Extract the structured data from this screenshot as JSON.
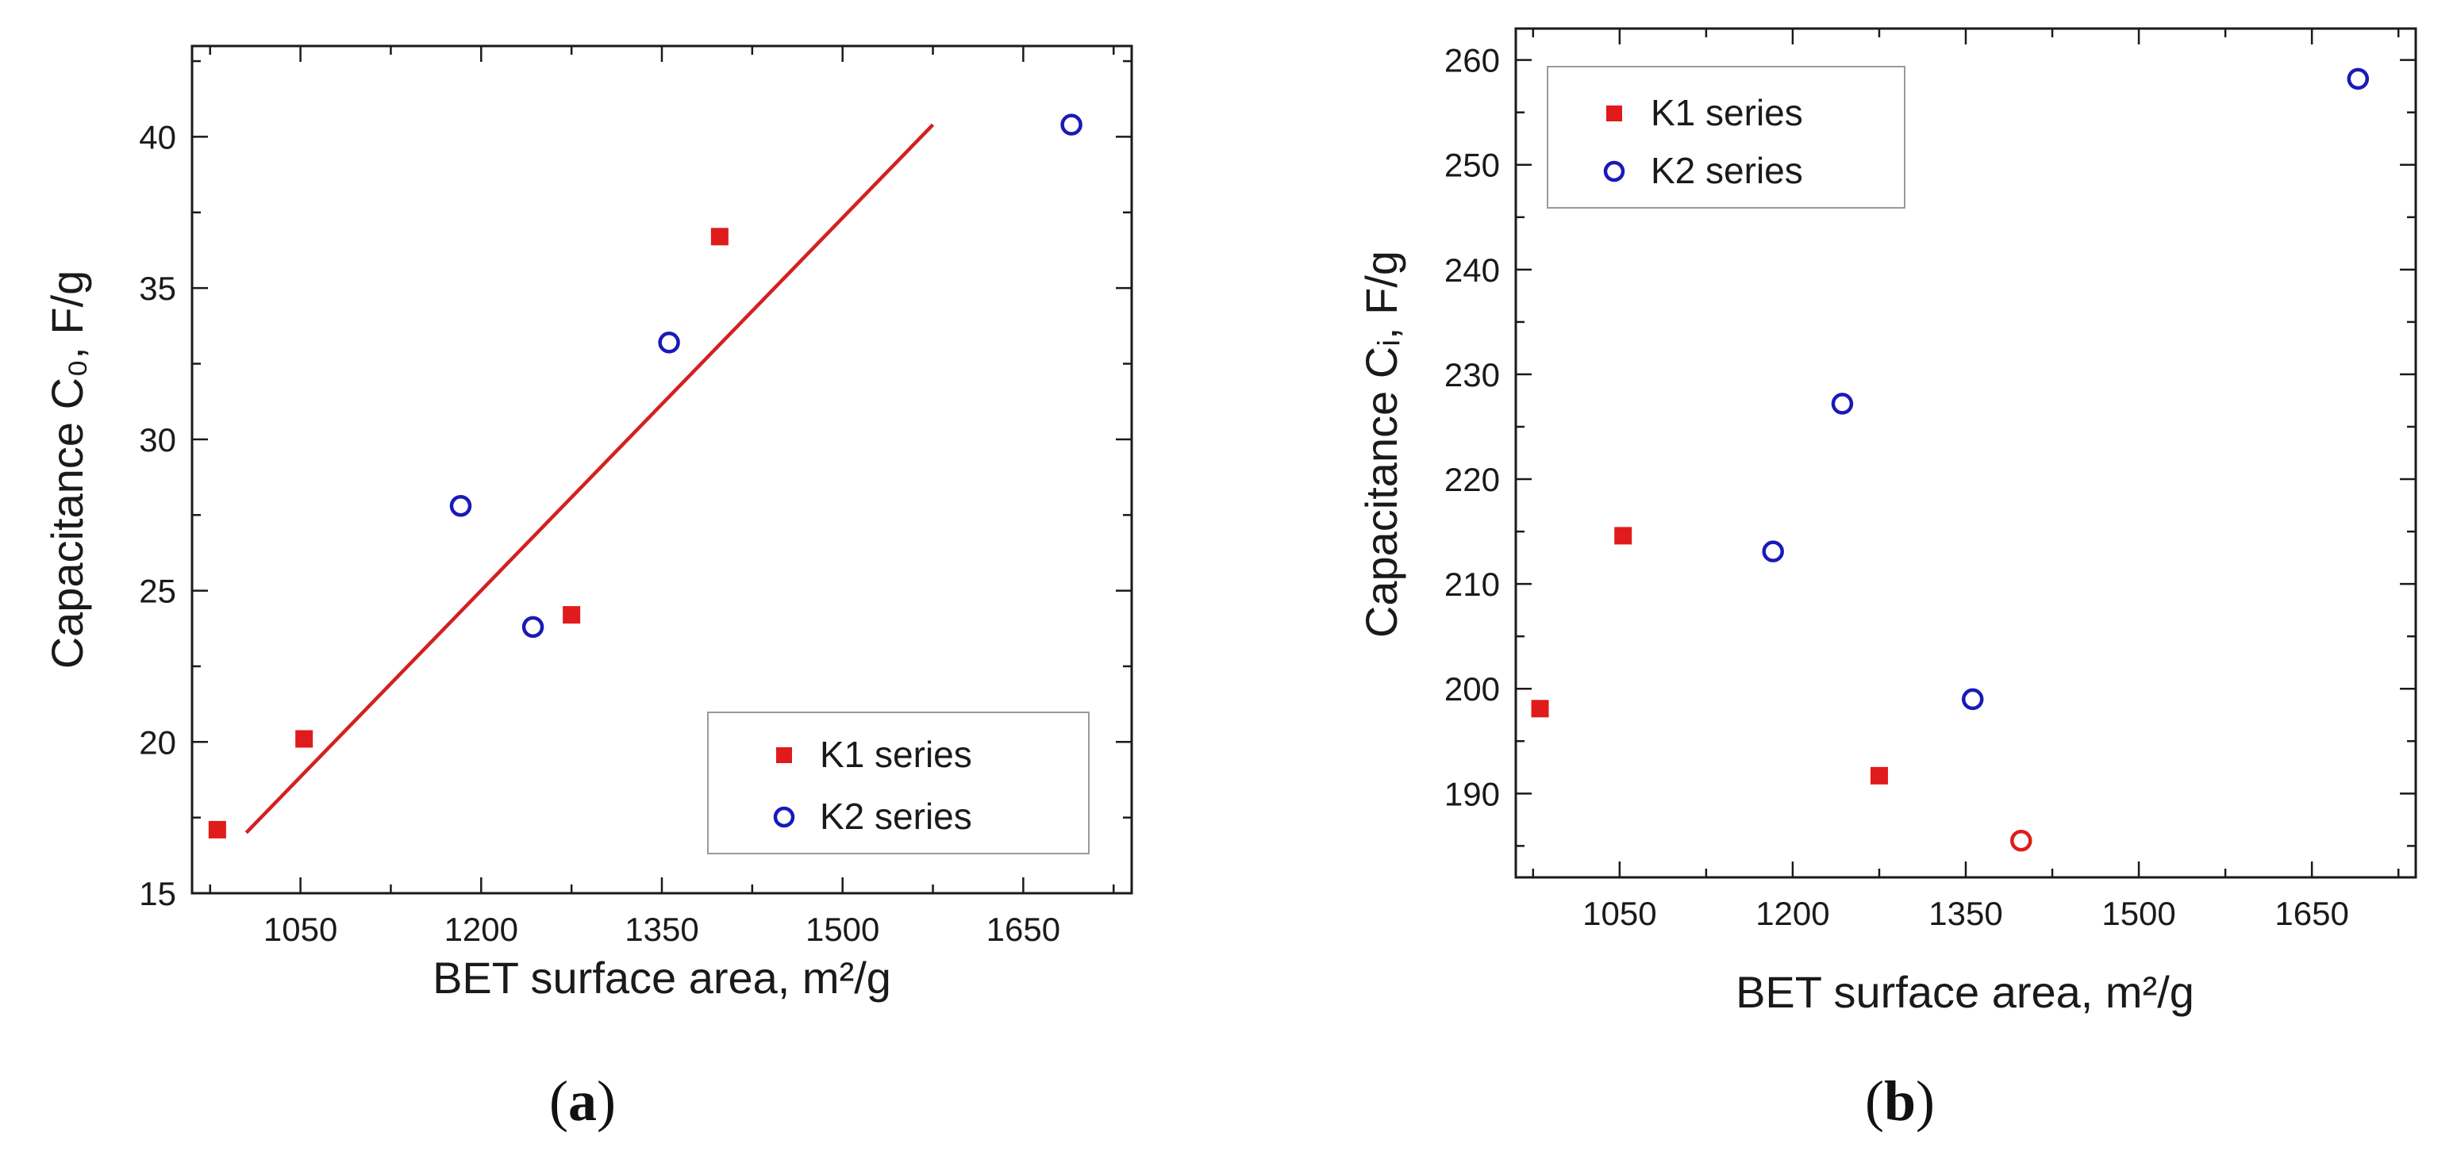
{
  "colors": {
    "k1": "#e01b1b",
    "k2": "#1a1ab8",
    "fit": "#d42020",
    "axis": "#1a1a1a",
    "outlier": "#e01b1b"
  },
  "chart_data": [
    {
      "type": "scatter",
      "panel": "a",
      "caption": {
        "open": "(",
        "letter": "a",
        "close": ")"
      },
      "xlabel": "BET surface area, m²/g",
      "ylabel": "Capacitance C₀, F/g",
      "xlim": [
        960,
        1740
      ],
      "ylim": [
        15,
        43
      ],
      "xticks": [
        1050,
        1200,
        1350,
        1500,
        1650
      ],
      "yticks": [
        15,
        20,
        25,
        30,
        35,
        40
      ],
      "legend_position": "bottom-right",
      "series": [
        {
          "name": "K1 series",
          "marker": "filled-square",
          "x": [
            981,
            1053,
            1275,
            1398
          ],
          "y": [
            17.1,
            20.1,
            24.2,
            36.7
          ]
        },
        {
          "name": "K2 series",
          "marker": "open-circle",
          "x": [
            1183,
            1243,
            1356,
            1690
          ],
          "y": [
            27.8,
            23.8,
            33.2,
            40.4
          ]
        }
      ],
      "fit_line": {
        "x": [
          1005,
          1575
        ],
        "y": [
          17.0,
          40.4
        ]
      }
    },
    {
      "type": "scatter",
      "panel": "b",
      "caption": {
        "open": "(",
        "letter": "b",
        "close": ")"
      },
      "xlabel": "BET surface area, m²/g",
      "ylabel": "Capacitance Cᵢ, F/g",
      "xlim": [
        960,
        1740
      ],
      "ylim": [
        182,
        263
      ],
      "xticks": [
        1050,
        1200,
        1350,
        1500,
        1650
      ],
      "yticks": [
        190,
        200,
        210,
        220,
        230,
        240,
        250,
        260
      ],
      "legend_position": "top-left",
      "series": [
        {
          "name": "K1 series",
          "marker": "filled-square",
          "x": [
            981,
            1053,
            1275
          ],
          "y": [
            198.1,
            214.6,
            191.7
          ]
        },
        {
          "name": "K2 series",
          "marker": "open-circle",
          "x": [
            1183,
            1243,
            1356,
            1690
          ],
          "y": [
            213.1,
            227.2,
            199.0,
            258.2
          ]
        },
        {
          "name": "",
          "marker": "open-circle-red",
          "x": [
            1398
          ],
          "y": [
            185.5
          ]
        }
      ]
    }
  ]
}
